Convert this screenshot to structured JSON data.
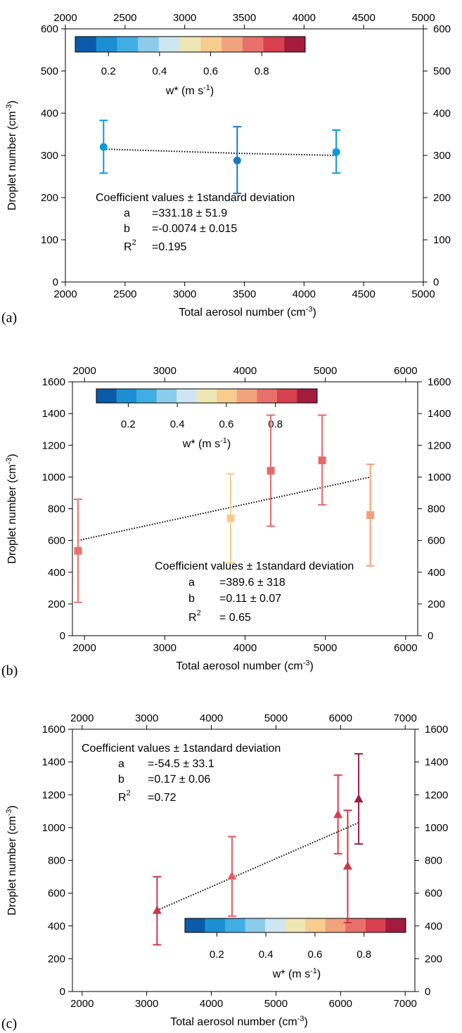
{
  "chart_data": [
    {
      "panel": "(a)",
      "type": "scatter",
      "xlabel": "Total aerosol number (cm",
      "xlabel_sup": "-3",
      "xlabel_end": ")",
      "ylabel": "Droplet number (cm",
      "ylabel_sup": "-3",
      "ylabel_end": ")",
      "xlim": [
        2000,
        5000
      ],
      "ylim": [
        0,
        600
      ],
      "xticks": [
        2000,
        2500,
        3000,
        3500,
        4000,
        4500,
        5000
      ],
      "yticks": [
        0,
        100,
        200,
        300,
        400,
        500,
        600
      ],
      "marker": "circle",
      "points": [
        {
          "x": 2320,
          "y": 320,
          "ylow": 258,
          "yhigh": 383,
          "color": "#0a9ad6"
        },
        {
          "x": 3440,
          "y": 288,
          "ylow": 210,
          "yhigh": 368,
          "color": "#1d77bf"
        },
        {
          "x": 4270,
          "y": 308,
          "ylow": 258,
          "yhigh": 360,
          "color": "#0a9ad6"
        }
      ],
      "fit_line": [
        [
          2320,
          315
        ],
        [
          3440,
          305
        ],
        [
          4270,
          300
        ]
      ],
      "annotation": {
        "header": "Coefficient values ± 1standard deviation",
        "a_label": "a",
        "a_value": "=331.18 ± 51.9",
        "b_label": "b",
        "b_value": "=-0.0074 ± 0.015",
        "r_label": "R",
        "r_sup": "2",
        "r_value": "=0.195"
      },
      "colorbar": {
        "title": "w* (m s",
        "title_sup": "-1",
        "title_end": ")",
        "ticks": [
          "0.2",
          "0.4",
          "0.6",
          "0.8"
        ]
      }
    },
    {
      "panel": "(b)",
      "type": "scatter",
      "xlabel": "Total aerosol number (cm",
      "xlabel_sup": "-3",
      "xlabel_end": ")",
      "ylabel": "Droplet number (cm",
      "ylabel_sup": "-3",
      "ylabel_end": ")",
      "xlim": [
        1850,
        6150
      ],
      "ylim": [
        0,
        1600
      ],
      "xticks": [
        2000,
        3000,
        4000,
        5000,
        6000
      ],
      "yticks": [
        0,
        200,
        400,
        600,
        800,
        1000,
        1200,
        1400,
        1600
      ],
      "marker": "square",
      "points": [
        {
          "x": 1920,
          "y": 535,
          "ylow": 210,
          "yhigh": 860,
          "color": "#e8736a"
        },
        {
          "x": 3820,
          "y": 740,
          "ylow": 460,
          "yhigh": 1020,
          "color": "#f6cc8e"
        },
        {
          "x": 4320,
          "y": 1040,
          "ylow": 690,
          "yhigh": 1390,
          "color": "#e8696a"
        },
        {
          "x": 4960,
          "y": 1105,
          "ylow": 825,
          "yhigh": 1390,
          "color": "#e8696a"
        },
        {
          "x": 5560,
          "y": 760,
          "ylow": 440,
          "yhigh": 1080,
          "color": "#f0a07a"
        }
      ],
      "fit_line": [
        [
          1920,
          600
        ],
        [
          5560,
          1000
        ]
      ],
      "annotation": {
        "header": "Coefficient values ± 1standard deviation",
        "a_label": "a",
        "a_value": "=389.6 ± 318",
        "b_label": "b",
        "b_value": "=0.11 ± 0.07",
        "r_label": "R",
        "r_sup": "2",
        "r_value": "= 0.65"
      },
      "colorbar": {
        "title": "w* (m s",
        "title_sup": "-1",
        "title_end": ")",
        "ticks": [
          "0.2",
          "0.4",
          "0.6",
          "0.8"
        ]
      }
    },
    {
      "panel": "(c)",
      "type": "scatter",
      "xlabel": "Total aerosol number (cm",
      "xlabel_sup": "-3",
      "xlabel_end": ")",
      "ylabel": "Droplet number (cm",
      "ylabel_sup": "-3",
      "ylabel_end": ")",
      "xlim": [
        1850,
        7150
      ],
      "ylim": [
        0,
        1600
      ],
      "xticks": [
        2000,
        3000,
        4000,
        5000,
        6000,
        7000
      ],
      "yticks": [
        0,
        200,
        400,
        600,
        800,
        1000,
        1200,
        1400,
        1600
      ],
      "marker": "triangle",
      "points": [
        {
          "x": 3160,
          "y": 495,
          "ylow": 285,
          "yhigh": 700,
          "color": "#c8394a"
        },
        {
          "x": 4320,
          "y": 705,
          "ylow": 460,
          "yhigh": 945,
          "color": "#e25d5f"
        },
        {
          "x": 5960,
          "y": 1080,
          "ylow": 840,
          "yhigh": 1320,
          "color": "#d63d50"
        },
        {
          "x": 6110,
          "y": 765,
          "ylow": 420,
          "yhigh": 1105,
          "color": "#c8394a"
        },
        {
          "x": 6280,
          "y": 1175,
          "ylow": 900,
          "yhigh": 1450,
          "color": "#a51d3c"
        }
      ],
      "fit_line": [
        [
          3160,
          495
        ],
        [
          6280,
          1030
        ]
      ],
      "annotation": {
        "header": "Coefficient values ± 1standard deviation",
        "a_label": "a",
        "a_value": "=-54.5 ± 33.1",
        "b_label": "b",
        "b_value": "=0.17 ± 0.06",
        "r_label": "R",
        "r_sup": "2",
        "r_value": "=0.72"
      },
      "colorbar": {
        "title": "w* (m s",
        "title_sup": "-1",
        "title_end": ")",
        "ticks": [
          "0.2",
          "0.4",
          "0.6",
          "0.8"
        ]
      }
    }
  ],
  "colormap": [
    "#0b5aa8",
    "#1b8fd1",
    "#40aee3",
    "#8ccbea",
    "#cde6ef",
    "#efe6b5",
    "#f7cc8f",
    "#f1a37e",
    "#e8706a",
    "#d6404f",
    "#a31c3e"
  ]
}
